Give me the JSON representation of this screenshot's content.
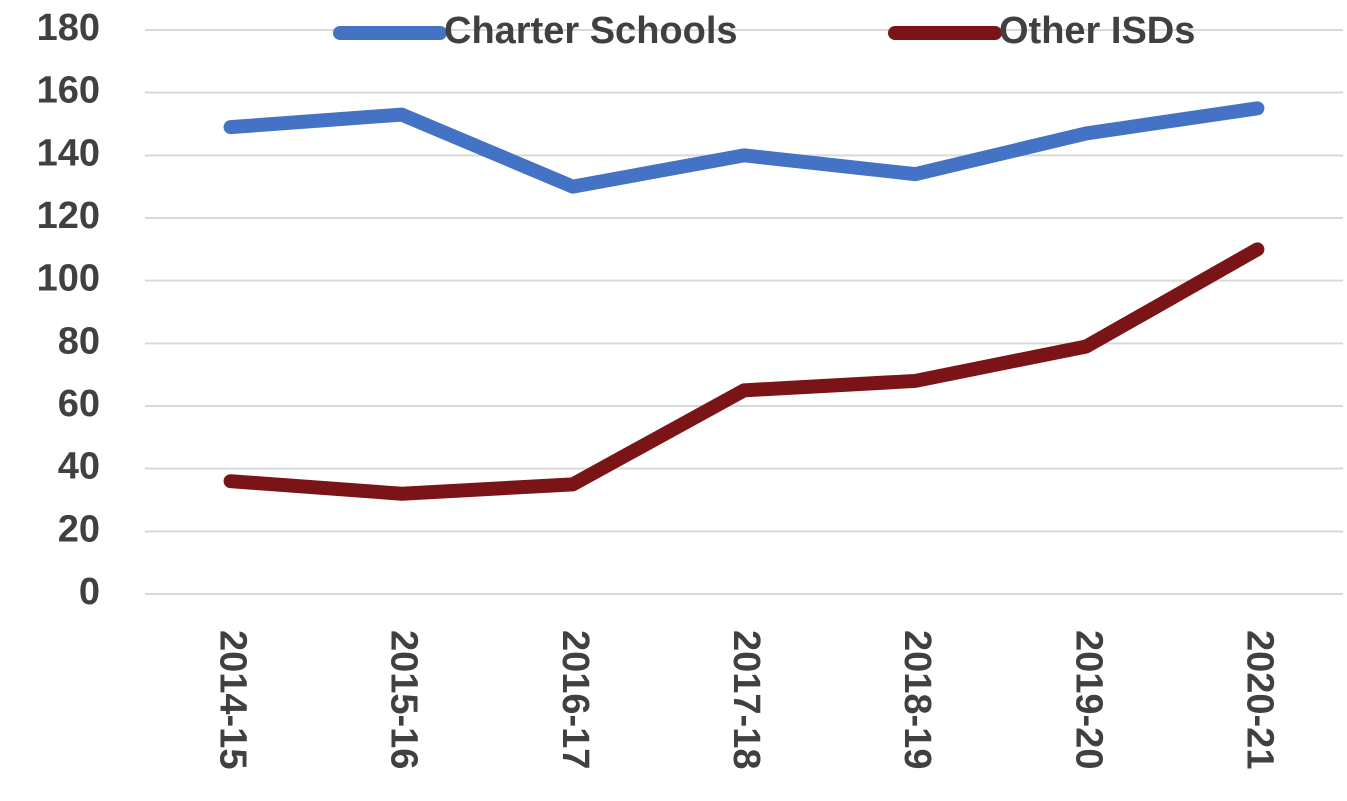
{
  "chart_data": {
    "type": "line",
    "categories": [
      "2014-15",
      "2015-16",
      "2016-17",
      "2017-18",
      "2018-19",
      "2019-20",
      "2020-21"
    ],
    "series": [
      {
        "name": "Charter Schools",
        "color": "#4472c4",
        "values": [
          149,
          153,
          130,
          140,
          134,
          147,
          155
        ]
      },
      {
        "name": "Other ISDs",
        "color": "#7b1416",
        "values": [
          36,
          32,
          35,
          65,
          68,
          79,
          110
        ]
      }
    ],
    "ylim": [
      0,
      180
    ],
    "yticks": [
      0,
      20,
      40,
      60,
      80,
      100,
      120,
      140,
      160,
      180
    ],
    "grid": true,
    "legend": "top"
  }
}
